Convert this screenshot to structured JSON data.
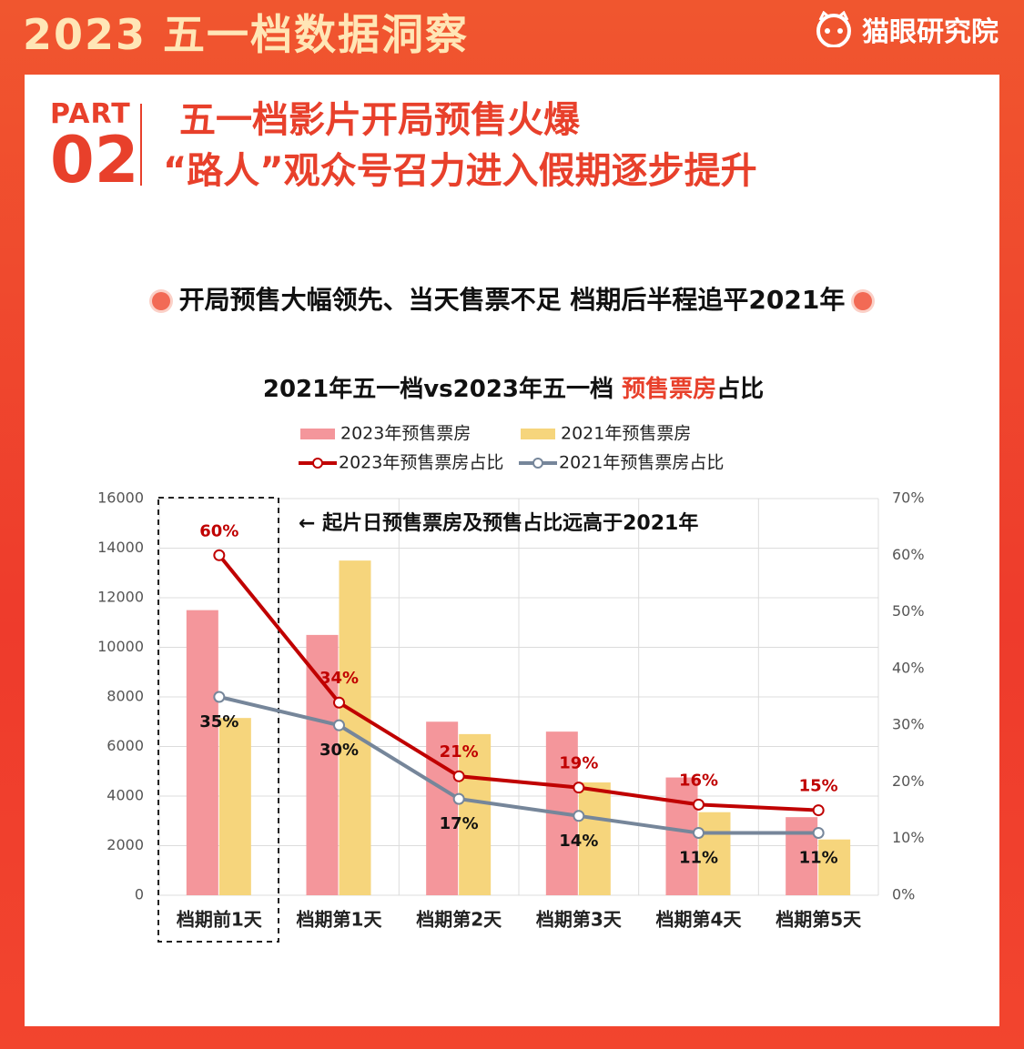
{
  "header": {
    "title": "2023 五一档数据洞察",
    "brand": "猫眼研究院"
  },
  "part": {
    "label": "PART",
    "number": "02"
  },
  "headline": [
    "五一档影片开局预售火爆",
    "“路人”观众号召力进入假期逐步提升"
  ],
  "subtitle": "开局预售大幅领先、当天售票不足 档期后半程追平2021年",
  "chart_data": {
    "type": "bar",
    "title_parts": [
      "2021年五一档vs2023年五一档 ",
      "预售票房",
      "占比"
    ],
    "annotation": "← 起片日预售票房及预售占比远高于2021年",
    "categories": [
      "档期前1天",
      "档期第1天",
      "档期第2天",
      "档期第3天",
      "档期第4天",
      "档期第5天"
    ],
    "series": [
      {
        "name": "2023年预售票房",
        "type": "bar",
        "color": "#f4969b",
        "values": [
          11500,
          10500,
          7000,
          6600,
          4750,
          3150
        ]
      },
      {
        "name": "2021年预售票房",
        "type": "bar",
        "color": "#f6d57c",
        "values": [
          7150,
          13500,
          6500,
          4550,
          3350,
          2250
        ]
      },
      {
        "name": "2023年预售票房占比",
        "type": "line",
        "axis": "y2",
        "color": "#c00000",
        "values": [
          60,
          34,
          21,
          19,
          16,
          15
        ],
        "value_labels": [
          "60%",
          "34%",
          "21%",
          "19%",
          "16%",
          "15%"
        ]
      },
      {
        "name": "2021年预售票房占比",
        "type": "line",
        "axis": "y2",
        "color": "#76869a",
        "values": [
          35,
          30,
          17,
          14,
          11,
          11
        ],
        "value_labels": [
          "35%",
          "30%",
          "17%",
          "14%",
          "11%",
          "11%"
        ]
      }
    ],
    "ylim": [
      0,
      16000
    ],
    "yticks": [
      0,
      2000,
      4000,
      6000,
      8000,
      10000,
      12000,
      14000,
      16000
    ],
    "y2lim": [
      0,
      70
    ],
    "y2ticks": [
      {
        "value": 0,
        "label": "0%"
      },
      {
        "value": 10,
        "label": "10%"
      },
      {
        "value": 20,
        "label": "20%"
      },
      {
        "value": 30,
        "label": "30%"
      },
      {
        "value": 40,
        "label": "40%"
      },
      {
        "value": 50,
        "label": "50%"
      },
      {
        "value": 60,
        "label": "60%"
      },
      {
        "value": 70,
        "label": "70%"
      }
    ],
    "grid": true
  }
}
